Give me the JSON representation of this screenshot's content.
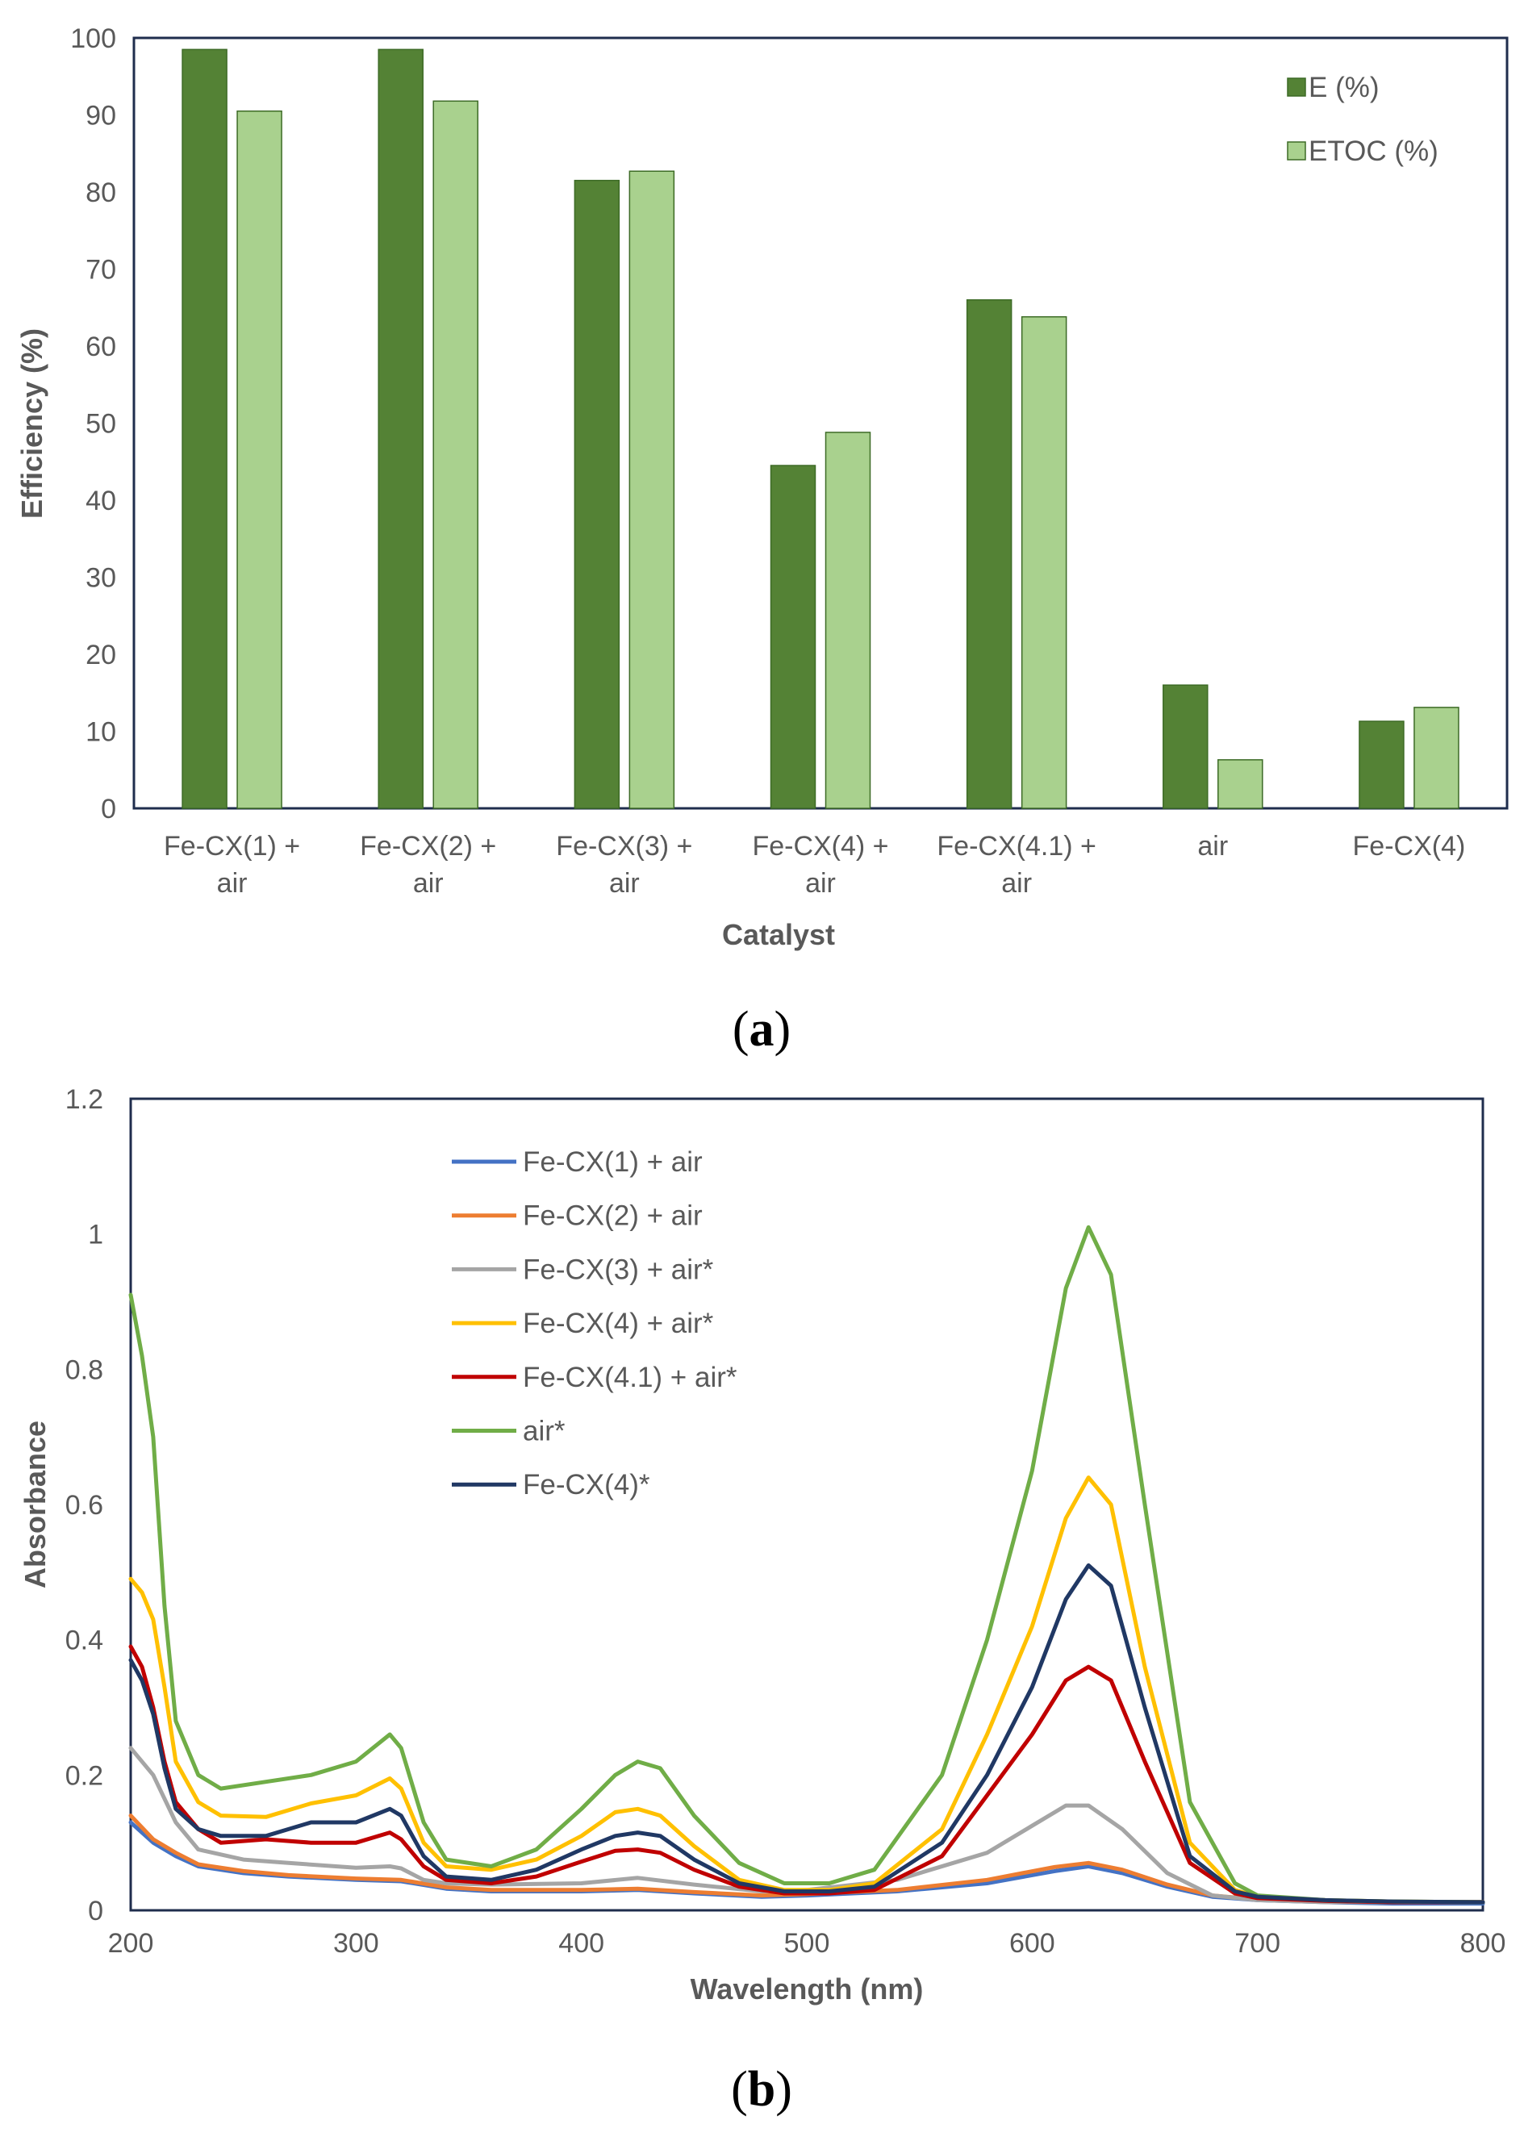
{
  "chart_data": [
    {
      "type": "bar",
      "panel_label": "a",
      "xlabel": "Catalyst",
      "ylabel": "Efficiency (%)",
      "ylim": [
        0,
        100
      ],
      "yticks": [
        0,
        10,
        20,
        30,
        40,
        50,
        60,
        70,
        80,
        90,
        100
      ],
      "grid": false,
      "legend_position": "top-right",
      "categories": [
        [
          "Fe-CX(1) +",
          "air"
        ],
        [
          "Fe-CX(2) +",
          "air"
        ],
        [
          "Fe-CX(3) +",
          "air"
        ],
        [
          "Fe-CX(4) +",
          "air"
        ],
        [
          "Fe-CX(4.1) +",
          "air"
        ],
        [
          "air"
        ],
        [
          "Fe-CX(4)"
        ]
      ],
      "series": [
        {
          "name": "E (%)",
          "color": "#548235",
          "values": [
            98.5,
            98.5,
            81.5,
            44.5,
            66,
            16,
            11.3
          ]
        },
        {
          "name": "ETOC (%)",
          "color": "#A9D18E",
          "values": [
            90.5,
            91.8,
            82.7,
            48.8,
            63.8,
            6.3,
            13.1
          ]
        }
      ]
    },
    {
      "type": "line",
      "panel_label": "b",
      "xlabel": "Wavelength (nm)",
      "ylabel": "Absorbance",
      "xlim": [
        200,
        800
      ],
      "ylim": [
        0,
        1.2
      ],
      "xticks": [
        200,
        300,
        400,
        500,
        600,
        700,
        800
      ],
      "yticks": [
        0,
        0.2,
        0.4,
        0.6,
        0.8,
        1,
        1.2
      ],
      "ytick_labels": [
        "0",
        "0.2",
        "0.4",
        "0.6",
        "0.8",
        "1",
        "1.2"
      ],
      "grid": false,
      "legend_position": "top-center",
      "series": [
        {
          "name": "Fe-CX(1) + air",
          "color": "#4472C4",
          "x": [
            200,
            210,
            220,
            230,
            250,
            270,
            300,
            320,
            340,
            360,
            400,
            425,
            450,
            480,
            500,
            540,
            580,
            610,
            625,
            640,
            660,
            680,
            700,
            730,
            760,
            800
          ],
          "y": [
            0.13,
            0.1,
            0.08,
            0.065,
            0.055,
            0.05,
            0.045,
            0.043,
            0.032,
            0.028,
            0.028,
            0.03,
            0.025,
            0.02,
            0.022,
            0.028,
            0.04,
            0.058,
            0.065,
            0.055,
            0.035,
            0.02,
            0.015,
            0.012,
            0.01,
            0.01
          ]
        },
        {
          "name": "Fe-CX(2) + air",
          "color": "#ED7D31",
          "x": [
            200,
            210,
            220,
            230,
            250,
            270,
            300,
            320,
            340,
            360,
            400,
            425,
            450,
            480,
            500,
            540,
            580,
            610,
            625,
            640,
            660,
            680,
            700,
            730,
            760,
            800
          ],
          "y": [
            0.14,
            0.105,
            0.085,
            0.068,
            0.058,
            0.052,
            0.047,
            0.045,
            0.034,
            0.03,
            0.03,
            0.032,
            0.027,
            0.022,
            0.024,
            0.03,
            0.045,
            0.064,
            0.07,
            0.06,
            0.038,
            0.022,
            0.016,
            0.013,
            0.012,
            0.012
          ]
        },
        {
          "name": "Fe-CX(3) + air*",
          "color": "#A5A5A5",
          "x": [
            200,
            210,
            220,
            230,
            250,
            270,
            300,
            315,
            320,
            330,
            340,
            360,
            400,
            425,
            450,
            480,
            500,
            540,
            580,
            600,
            615,
            625,
            640,
            660,
            680,
            700,
            730,
            760,
            800
          ],
          "y": [
            0.24,
            0.2,
            0.13,
            0.09,
            0.075,
            0.07,
            0.063,
            0.065,
            0.062,
            0.045,
            0.04,
            0.038,
            0.04,
            0.048,
            0.038,
            0.028,
            0.03,
            0.045,
            0.085,
            0.125,
            0.155,
            0.155,
            0.12,
            0.055,
            0.022,
            0.015,
            0.012,
            0.012,
            0.012
          ]
        },
        {
          "name": "Fe-CX(4) + air*",
          "color": "#FFC000",
          "x": [
            200,
            205,
            210,
            215,
            220,
            230,
            240,
            260,
            280,
            300,
            315,
            320,
            330,
            340,
            360,
            380,
            400,
            415,
            425,
            435,
            450,
            470,
            490,
            510,
            530,
            560,
            580,
            600,
            615,
            625,
            635,
            650,
            670,
            690,
            700,
            730,
            760,
            800
          ],
          "y": [
            0.49,
            0.47,
            0.43,
            0.33,
            0.22,
            0.16,
            0.14,
            0.138,
            0.158,
            0.17,
            0.195,
            0.18,
            0.1,
            0.065,
            0.06,
            0.075,
            0.11,
            0.145,
            0.15,
            0.14,
            0.095,
            0.045,
            0.03,
            0.03,
            0.04,
            0.12,
            0.26,
            0.42,
            0.58,
            0.64,
            0.6,
            0.36,
            0.1,
            0.03,
            0.02,
            0.015,
            0.013,
            0.012
          ]
        },
        {
          "name": "Fe-CX(4.1) + air*",
          "color": "#C00000",
          "x": [
            200,
            205,
            210,
            215,
            220,
            230,
            240,
            260,
            280,
            300,
            315,
            320,
            330,
            340,
            360,
            380,
            400,
            415,
            425,
            435,
            450,
            470,
            490,
            510,
            530,
            560,
            580,
            600,
            615,
            625,
            635,
            650,
            670,
            690,
            700,
            730,
            760,
            800
          ],
          "y": [
            0.39,
            0.36,
            0.3,
            0.22,
            0.16,
            0.12,
            0.1,
            0.105,
            0.1,
            0.1,
            0.115,
            0.105,
            0.065,
            0.045,
            0.04,
            0.05,
            0.072,
            0.088,
            0.09,
            0.085,
            0.06,
            0.035,
            0.025,
            0.025,
            0.03,
            0.08,
            0.17,
            0.26,
            0.34,
            0.36,
            0.34,
            0.22,
            0.07,
            0.025,
            0.018,
            0.014,
            0.012,
            0.012
          ]
        },
        {
          "name": "air*",
          "color": "#70AD47",
          "x": [
            200,
            205,
            210,
            215,
            220,
            230,
            240,
            260,
            280,
            300,
            315,
            320,
            330,
            340,
            360,
            380,
            400,
            415,
            425,
            435,
            450,
            470,
            490,
            510,
            530,
            560,
            580,
            600,
            615,
            625,
            635,
            650,
            670,
            690,
            700,
            730,
            760,
            800
          ],
          "y": [
            0.91,
            0.82,
            0.7,
            0.45,
            0.28,
            0.2,
            0.18,
            0.19,
            0.2,
            0.22,
            0.26,
            0.24,
            0.13,
            0.075,
            0.065,
            0.09,
            0.15,
            0.2,
            0.22,
            0.21,
            0.14,
            0.07,
            0.04,
            0.04,
            0.06,
            0.2,
            0.4,
            0.65,
            0.92,
            1.01,
            0.94,
            0.6,
            0.16,
            0.04,
            0.022,
            0.015,
            0.013,
            0.012
          ]
        },
        {
          "name": "Fe-CX(4)*",
          "color": "#203864",
          "x": [
            200,
            205,
            210,
            215,
            220,
            230,
            240,
            260,
            280,
            300,
            315,
            320,
            330,
            340,
            360,
            380,
            400,
            415,
            425,
            435,
            450,
            470,
            490,
            510,
            530,
            560,
            580,
            600,
            615,
            625,
            635,
            650,
            670,
            690,
            700,
            730,
            760,
            800
          ],
          "y": [
            0.37,
            0.34,
            0.29,
            0.21,
            0.15,
            0.12,
            0.11,
            0.11,
            0.13,
            0.13,
            0.15,
            0.14,
            0.08,
            0.05,
            0.045,
            0.06,
            0.09,
            0.11,
            0.115,
            0.11,
            0.075,
            0.04,
            0.028,
            0.028,
            0.035,
            0.1,
            0.2,
            0.33,
            0.46,
            0.51,
            0.48,
            0.3,
            0.08,
            0.028,
            0.02,
            0.015,
            0.013,
            0.012
          ]
        }
      ]
    }
  ]
}
